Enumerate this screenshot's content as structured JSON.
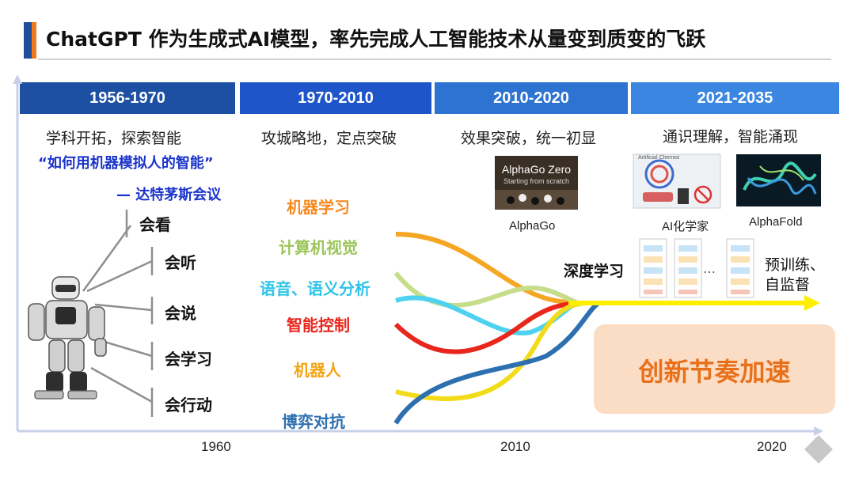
{
  "title": "ChatGPT 作为生成式AI模型，率先完成人工智能技术从量变到质变的飞跃",
  "eras": [
    {
      "label": "1956-1970",
      "color": "#1d4fa2",
      "subtitle": "学科开拓，探索智能"
    },
    {
      "label": "1970-2010",
      "color": "#1e55c8",
      "subtitle": "攻城略地，定点突破"
    },
    {
      "label": "2010-2020",
      "color": "#2c73d2",
      "subtitle": "效果突破，统一初显"
    },
    {
      "label": "2021-2035",
      "color": "#3a86e0",
      "subtitle": "通识理解，智能涌现"
    }
  ],
  "quote": "“如何用机器模拟人的智能”",
  "quote_source": "— 达特茅斯会议",
  "abilities": [
    "会看",
    "会听",
    "会说",
    "会学习",
    "会行动"
  ],
  "fields": [
    {
      "label": "机器学习",
      "color": "#f58a1f"
    },
    {
      "label": "计算机视觉",
      "color": "#9cc55a"
    },
    {
      "label": "语音、语义分析",
      "color": "#2ec4e6"
    },
    {
      "label": "智能控制",
      "color": "#e8261c"
    },
    {
      "label": "机器人",
      "color": "#f2a413"
    },
    {
      "label": "博弈对抗",
      "color": "#2e6fb0"
    }
  ],
  "images": {
    "alphago_caption_main": "AlphaGo Zero",
    "alphago_caption_sub": "Starting from scratch",
    "alphago_label": "AlphaGo",
    "chemist_label": "AI化学家",
    "chemist_header": "Artificial Chemist",
    "alphafold_label": "AlphaFold"
  },
  "deep_learning": "深度学习",
  "pretrain": [
    "预训练、",
    "自监督"
  ],
  "ellipsis": "…",
  "acceleration": "创新节奏加速",
  "years": [
    "1960",
    "2010",
    "2020"
  ],
  "colors": {
    "arrow": "#ffee00",
    "axis": "#c7d0e8",
    "accent_orange": "#e8701a"
  }
}
